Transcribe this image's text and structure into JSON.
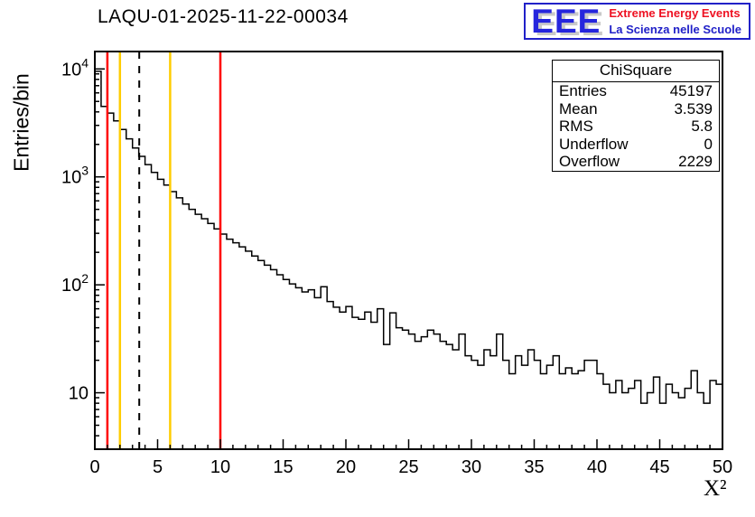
{
  "logo": {
    "eee": "EEE",
    "line1": "Extreme Energy Events",
    "line2": "La Scienza nelle Scuole",
    "blue": "#2121c8",
    "red": "#ee1122"
  },
  "stats": {
    "title": "ChiSquare",
    "rows": [
      {
        "label": "Entries",
        "value": "45197"
      },
      {
        "label": "Mean",
        "value": "3.539"
      },
      {
        "label": "RMS",
        "value": "5.8"
      },
      {
        "label": "Underflow",
        "value": "0"
      },
      {
        "label": "Overflow",
        "value": "2229"
      }
    ]
  },
  "chart_data": {
    "type": "bar",
    "subtype": "histogram-step",
    "title": "LAQU-01-2025-11-22-00034",
    "xlabel": "X²",
    "ylabel": "Entries/bin",
    "yscale": "log",
    "xlim": [
      0,
      50
    ],
    "ylog_range": [
      3,
      14500
    ],
    "x_ticks": [
      0,
      5,
      10,
      15,
      20,
      25,
      30,
      35,
      40,
      45,
      50
    ],
    "x_tick_step": 5,
    "x_minor_step": 1,
    "y_ticks": [
      10,
      100,
      1000,
      10000
    ],
    "grid": false,
    "line_color": "#000000",
    "bin_start": 0,
    "bin_width": 0.5,
    "counts": [
      9500,
      4500,
      3900,
      3300,
      2750,
      2250,
      1850,
      1550,
      1300,
      1100,
      950,
      840,
      730,
      640,
      560,
      500,
      450,
      410,
      370,
      330,
      295,
      265,
      245,
      225,
      205,
      185,
      168,
      152,
      138,
      124,
      112,
      102,
      94,
      86,
      90,
      76,
      96,
      70,
      62,
      56,
      63,
      50,
      48,
      56,
      45,
      60,
      28,
      55,
      40,
      38,
      35,
      30,
      33,
      38,
      35,
      30,
      28,
      25,
      35,
      22,
      20,
      18,
      25,
      22,
      35,
      20,
      15,
      22,
      18,
      25,
      20,
      15,
      18,
      22,
      15,
      17,
      15,
      16,
      20,
      20,
      15,
      12,
      10,
      13,
      10,
      11,
      13,
      8,
      10,
      14,
      8,
      12,
      10,
      9,
      11,
      16,
      10,
      8,
      13,
      12
    ],
    "vlines": [
      {
        "x": 1,
        "color": "#ff0000",
        "style": "solid",
        "width": 2.5
      },
      {
        "x": 2,
        "color": "#ffcc00",
        "style": "solid",
        "width": 2.5
      },
      {
        "x": 3.539,
        "color": "#000000",
        "style": "dashed",
        "width": 2
      },
      {
        "x": 6,
        "color": "#ffcc00",
        "style": "solid",
        "width": 2.5
      },
      {
        "x": 10,
        "color": "#ff0000",
        "style": "solid",
        "width": 2.5
      }
    ]
  }
}
